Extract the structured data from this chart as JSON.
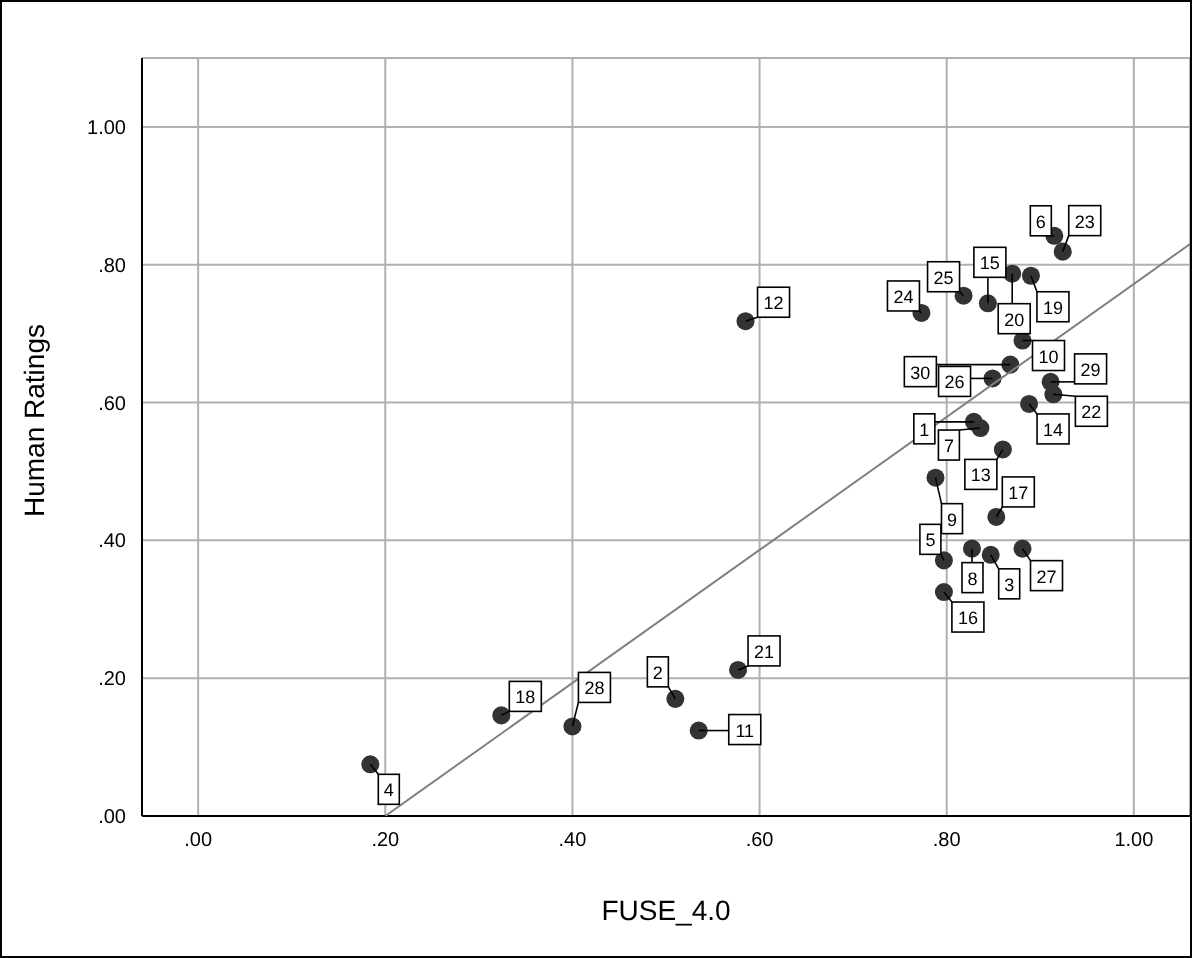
{
  "chart_data": {
    "type": "scatter",
    "xlabel": "FUSE_4.0",
    "ylabel": "Human Ratings",
    "xlim": [
      -0.06,
      1.06
    ],
    "ylim": [
      0,
      1.1
    ],
    "xticks": [
      {
        "value": 0,
        "label": ".00"
      },
      {
        "value": 0.2,
        "label": ".20"
      },
      {
        "value": 0.4,
        "label": ".40"
      },
      {
        "value": 0.6,
        "label": ".60"
      },
      {
        "value": 0.8,
        "label": ".80"
      },
      {
        "value": 1,
        "label": "1.00"
      }
    ],
    "yticks": [
      {
        "value": 0,
        "label": ".00"
      },
      {
        "value": 0.2,
        "label": ".20"
      },
      {
        "value": 0.4,
        "label": ".40"
      },
      {
        "value": 0.6,
        "label": ".60"
      },
      {
        "value": 0.8,
        "label": ".80"
      },
      {
        "value": 1,
        "label": "1.00"
      }
    ],
    "grid": true,
    "marker": "circle",
    "series": [
      {
        "color": "#333333",
        "x": [
          0.829,
          0.51,
          0.847,
          0.184,
          0.797,
          0.915,
          0.836,
          0.827,
          0.788,
          0.881,
          0.535,
          0.585,
          0.86,
          0.888,
          0.844,
          0.797,
          0.853,
          0.324,
          0.89,
          0.87,
          0.577,
          0.914,
          0.924,
          0.773,
          0.818,
          0.849,
          0.881,
          0.4,
          0.911,
          0.868
        ],
        "values": [
          0.572,
          0.17,
          0.379,
          0.075,
          0.371,
          0.842,
          0.563,
          0.388,
          0.491,
          0.69,
          0.124,
          0.718,
          0.532,
          0.598,
          0.744,
          0.325,
          0.434,
          0.146,
          0.784,
          0.787,
          0.212,
          0.612,
          0.819,
          0.73,
          0.755,
          0.635,
          0.388,
          0.13,
          0.63,
          0.655
        ]
      },
      {
        "type": "line",
        "color": "#808080",
        "marker": "none",
        "x": [
          0.2,
          1.06
        ],
        "values": [
          0,
          0.83
        ]
      }
    ],
    "annotations": [
      {
        "text": "1",
        "x": 0.829,
        "y": 0.572
      },
      {
        "text": "2",
        "x": 0.51,
        "y": 0.17
      },
      {
        "text": "3",
        "x": 0.847,
        "y": 0.379
      },
      {
        "text": "4",
        "x": 0.184,
        "y": 0.075
      },
      {
        "text": "5",
        "x": 0.797,
        "y": 0.371
      },
      {
        "text": "6",
        "x": 0.915,
        "y": 0.842
      },
      {
        "text": "7",
        "x": 0.836,
        "y": 0.563
      },
      {
        "text": "8",
        "x": 0.827,
        "y": 0.388
      },
      {
        "text": "9",
        "x": 0.788,
        "y": 0.491
      },
      {
        "text": "10",
        "x": 0.881,
        "y": 0.69
      },
      {
        "text": "11",
        "x": 0.535,
        "y": 0.124
      },
      {
        "text": "12",
        "x": 0.585,
        "y": 0.718
      },
      {
        "text": "13",
        "x": 0.86,
        "y": 0.532
      },
      {
        "text": "14",
        "x": 0.888,
        "y": 0.598
      },
      {
        "text": "15",
        "x": 0.844,
        "y": 0.744
      },
      {
        "text": "16",
        "x": 0.797,
        "y": 0.325
      },
      {
        "text": "17",
        "x": 0.853,
        "y": 0.434
      },
      {
        "text": "18",
        "x": 0.324,
        "y": 0.146
      },
      {
        "text": "19",
        "x": 0.89,
        "y": 0.784
      },
      {
        "text": "20",
        "x": 0.87,
        "y": 0.787
      },
      {
        "text": "21",
        "x": 0.577,
        "y": 0.212
      },
      {
        "text": "22",
        "x": 0.914,
        "y": 0.612
      },
      {
        "text": "23",
        "x": 0.924,
        "y": 0.819
      },
      {
        "text": "24",
        "x": 0.773,
        "y": 0.73
      },
      {
        "text": "25",
        "x": 0.818,
        "y": 0.755
      },
      {
        "text": "26",
        "x": 0.849,
        "y": 0.635
      },
      {
        "text": "27",
        "x": 0.881,
        "y": 0.388
      },
      {
        "text": "28",
        "x": 0.4,
        "y": 0.13
      },
      {
        "text": "29",
        "x": 0.911,
        "y": 0.63
      },
      {
        "text": "30",
        "x": 0.868,
        "y": 0.655
      }
    ]
  }
}
